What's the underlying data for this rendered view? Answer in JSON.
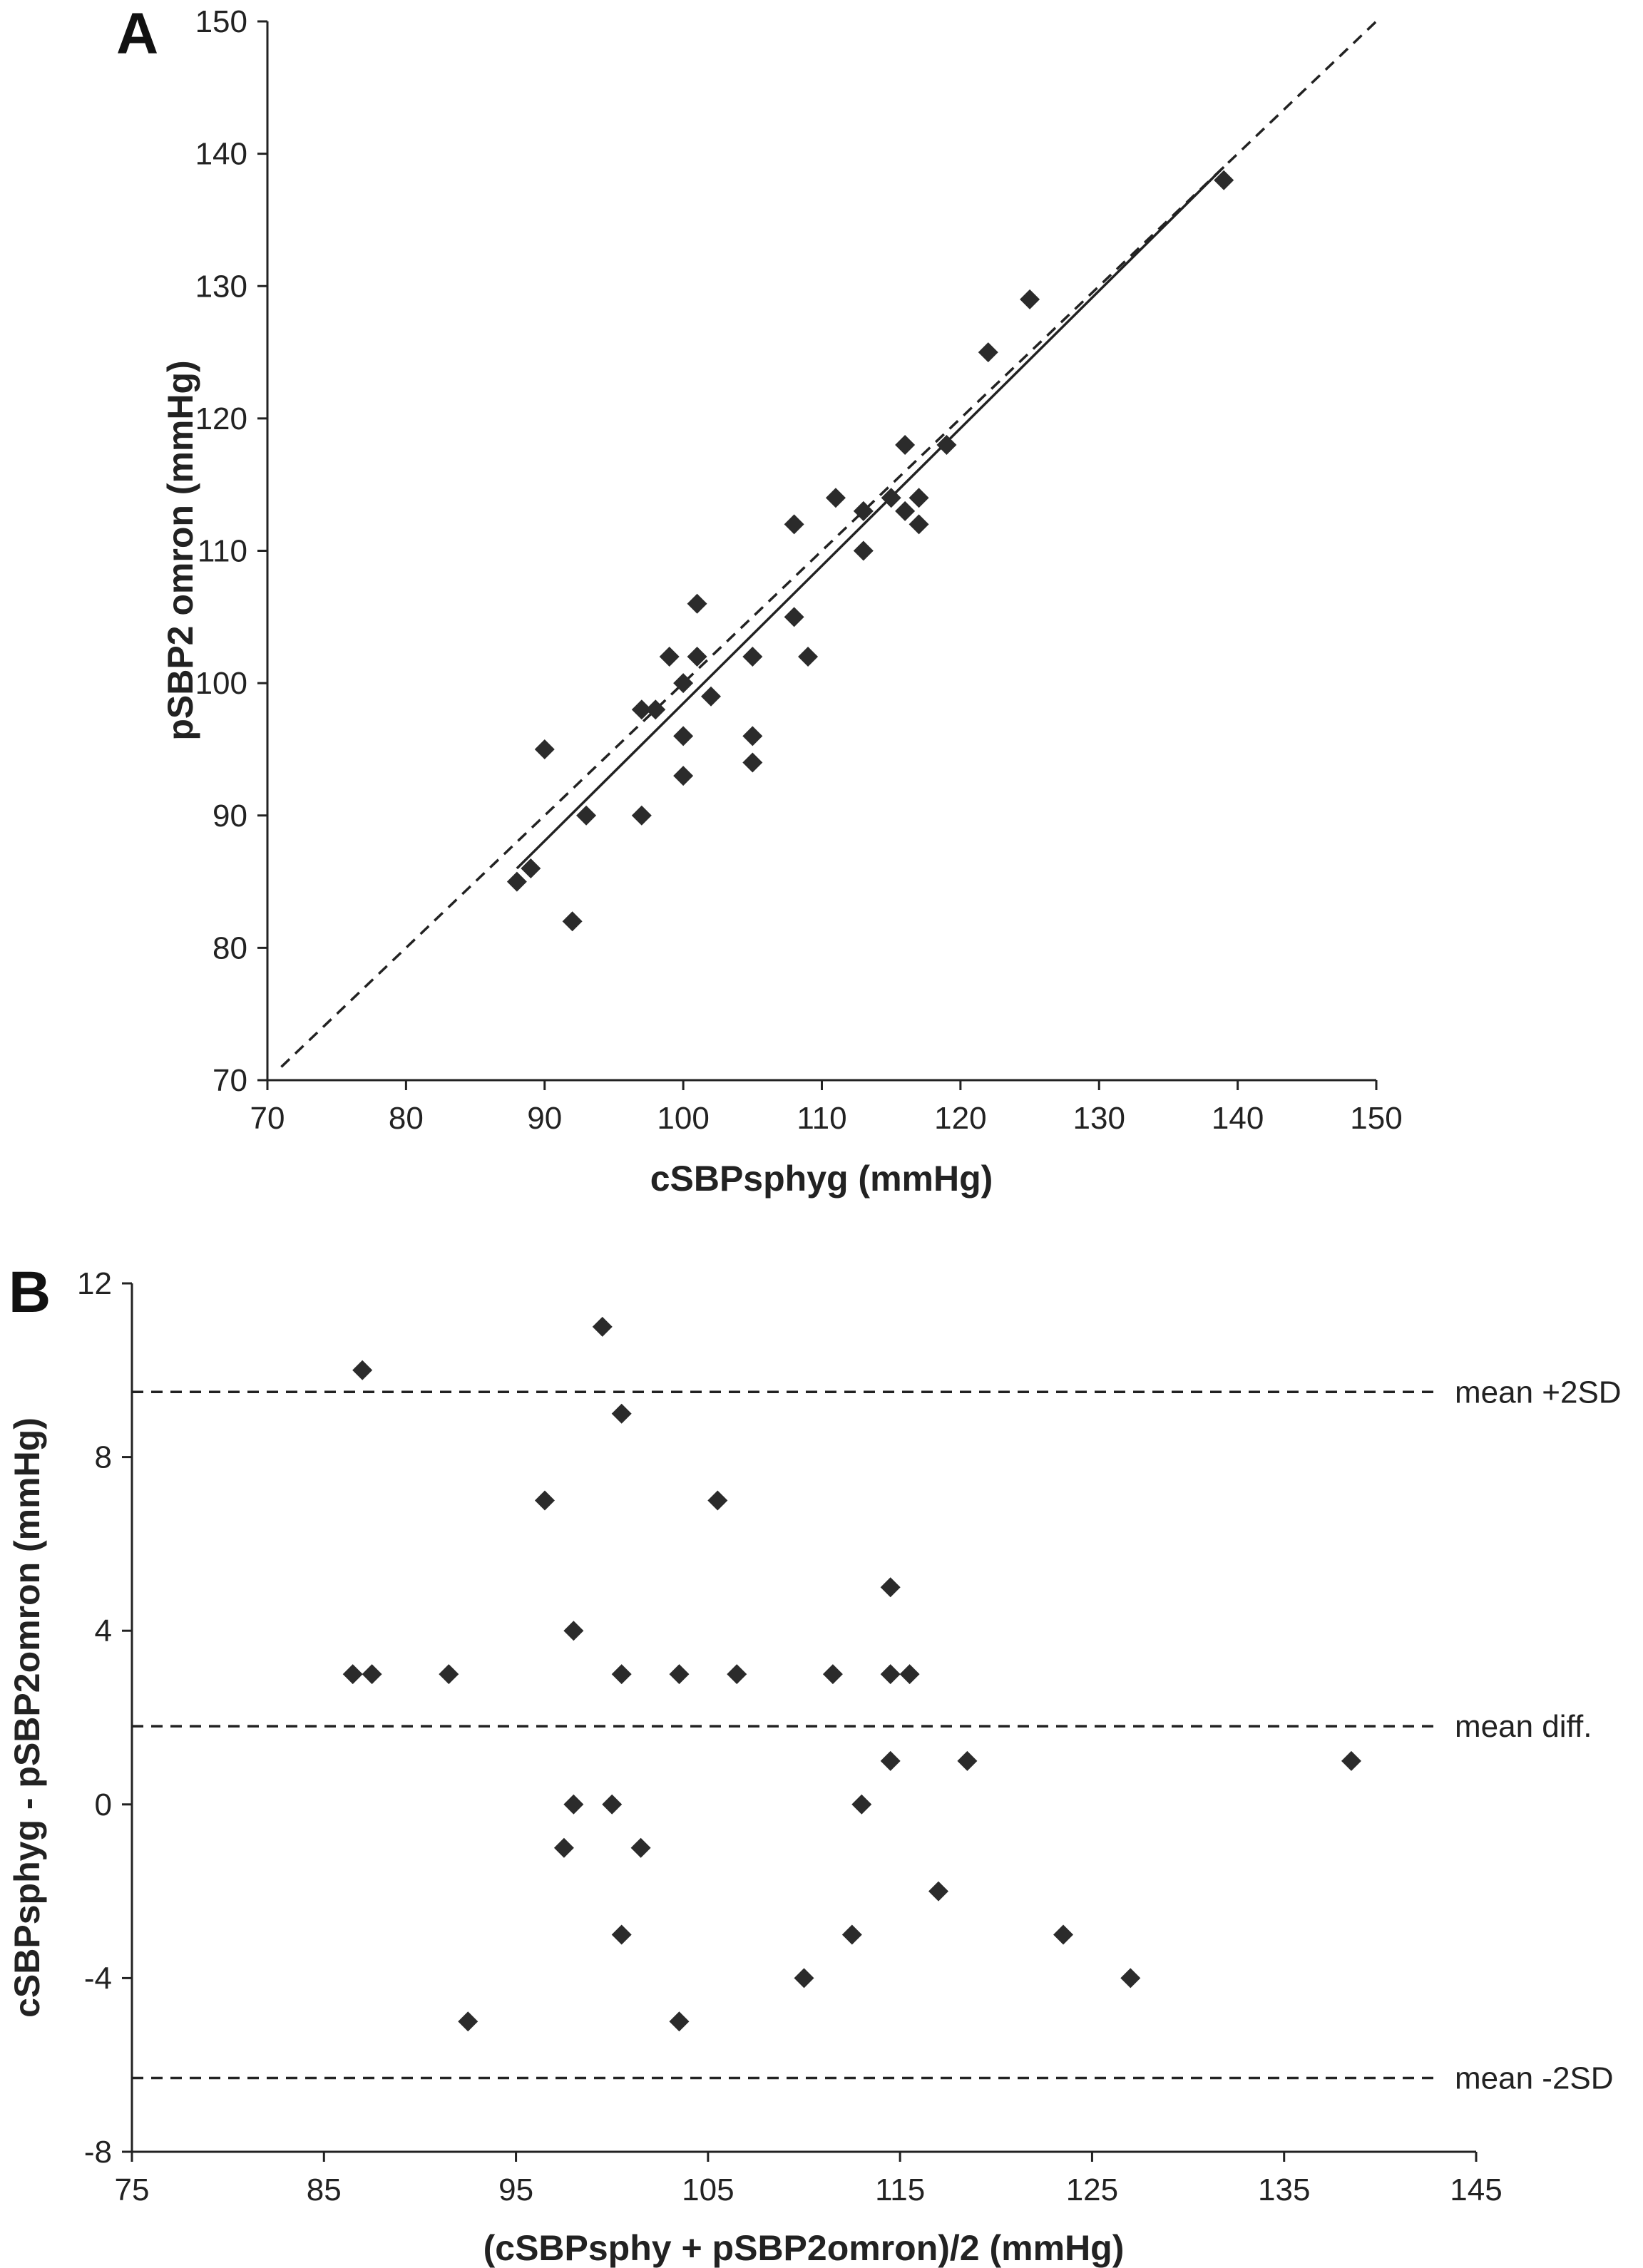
{
  "chart_data": [
    {
      "panel": "A",
      "type": "scatter",
      "title": "",
      "xlabel": "cSBPsphyg (mmHg)",
      "ylabel": "pSBP2 omron (mmHg)",
      "xlim": [
        70,
        150
      ],
      "ylim": [
        70,
        150
      ],
      "xticks": [
        "70",
        "80",
        "90",
        "100",
        "110",
        "120",
        "130",
        "140",
        "150"
      ],
      "yticks": [
        "70",
        "80",
        "90",
        "100",
        "110",
        "120",
        "130",
        "140",
        "150"
      ],
      "grid": false,
      "marker": "diamond",
      "points": [
        [
          88,
          85
        ],
        [
          89,
          86
        ],
        [
          90,
          95
        ],
        [
          92,
          82
        ],
        [
          93,
          90
        ],
        [
          97,
          98
        ],
        [
          97,
          90
        ],
        [
          98,
          98
        ],
        [
          99,
          102
        ],
        [
          100,
          100
        ],
        [
          100,
          96
        ],
        [
          100,
          93
        ],
        [
          101,
          106
        ],
        [
          101,
          102
        ],
        [
          102,
          99
        ],
        [
          105,
          102
        ],
        [
          105,
          96
        ],
        [
          105,
          94
        ],
        [
          108,
          112
        ],
        [
          108,
          105
        ],
        [
          109,
          102
        ],
        [
          111,
          114
        ],
        [
          113,
          113
        ],
        [
          113,
          110
        ],
        [
          115,
          114
        ],
        [
          116,
          118
        ],
        [
          116,
          113
        ],
        [
          117,
          114
        ],
        [
          117,
          112
        ],
        [
          119,
          118
        ],
        [
          122,
          125
        ],
        [
          125,
          129
        ],
        [
          139,
          138
        ]
      ],
      "lines": [
        {
          "name": "",
          "style": "dashed",
          "from": [
            71,
            71
          ],
          "to": [
            150,
            150
          ]
        },
        {
          "name": "",
          "style": "solid",
          "from": [
            88,
            86
          ],
          "to": [
            139,
            139
          ]
        }
      ]
    },
    {
      "panel": "B",
      "type": "scatter",
      "title": "",
      "xlabel": "(cSBPsphy + pSBP2omron)/2 (mmHg)",
      "ylabel": "cSBPsphyg - pSBP2omron (mmHg)",
      "xlim": [
        75,
        145
      ],
      "ylim": [
        -8,
        12
      ],
      "xticks": [
        "75",
        "85",
        "95",
        "105",
        "115",
        "125",
        "135",
        "145"
      ],
      "yticks": [
        "-8",
        "-4",
        "0",
        "4",
        "8",
        "12"
      ],
      "grid": false,
      "marker": "diamond",
      "points": [
        [
          87,
          10
        ],
        [
          99.5,
          11
        ],
        [
          100.5,
          9
        ],
        [
          96.5,
          7
        ],
        [
          105.5,
          7
        ],
        [
          114.5,
          5
        ],
        [
          98,
          4
        ],
        [
          86.5,
          3
        ],
        [
          87.5,
          3
        ],
        [
          91.5,
          3
        ],
        [
          100.5,
          3
        ],
        [
          103.5,
          3
        ],
        [
          106.5,
          3
        ],
        [
          111.5,
          3
        ],
        [
          114.5,
          3
        ],
        [
          115.5,
          3
        ],
        [
          114.5,
          1
        ],
        [
          118.5,
          1
        ],
        [
          138.5,
          1
        ],
        [
          98,
          0
        ],
        [
          100,
          0
        ],
        [
          113,
          0
        ],
        [
          97.5,
          -1
        ],
        [
          101.5,
          -1
        ],
        [
          117,
          -2
        ],
        [
          100.5,
          -3
        ],
        [
          112.5,
          -3
        ],
        [
          123.5,
          -3
        ],
        [
          110,
          -4
        ],
        [
          127,
          -4
        ],
        [
          92.5,
          -5
        ],
        [
          103.5,
          -5
        ]
      ],
      "reference_lines": [
        {
          "label": "mean +2SD",
          "y": 9.5
        },
        {
          "label": "mean diff.",
          "y": 1.8
        },
        {
          "label": "mean -2SD",
          "y": -6.3
        }
      ]
    }
  ]
}
